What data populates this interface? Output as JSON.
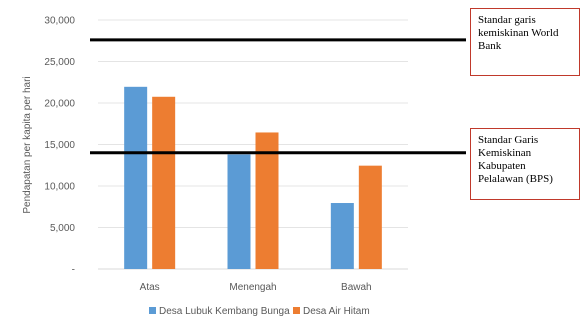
{
  "chart_data": {
    "type": "bar",
    "categories": [
      "Atas",
      "Menengah",
      "Bawah"
    ],
    "series": [
      {
        "name": "Desa Lubuk Kembang Bunga",
        "values": [
          21950,
          13800,
          7950
        ],
        "color": "#5b9bd5"
      },
      {
        "name": "Desa Air Hitam",
        "values": [
          20750,
          16450,
          12450
        ],
        "color": "#ed7d31"
      }
    ],
    "xlabel": "",
    "ylabel": "Pendapatan per kapita per hari",
    "ylim": [
      0,
      30000
    ],
    "yticks": [
      {
        "value": 0,
        "label": "-"
      },
      {
        "value": 5000,
        "label": "5,000"
      },
      {
        "value": 10000,
        "label": "10,000"
      },
      {
        "value": 15000,
        "label": "15,000"
      },
      {
        "value": 20000,
        "label": "20,000"
      },
      {
        "value": 25000,
        "label": "25,000"
      },
      {
        "value": 30000,
        "label": "30,000"
      }
    ],
    "grid": true,
    "legend_position": "bottom",
    "reference_lines": [
      {
        "value": 27600,
        "label": "Standar garis kemiskinan World Bank",
        "color": "#000000"
      },
      {
        "value": 14000,
        "label": "Standar Garis Kemiskinan Kabupaten Pelalawan (BPS)",
        "color": "#000000"
      }
    ]
  },
  "notes": {
    "world_bank": [
      "Standar garis",
      "kemiskinan World",
      "Bank"
    ],
    "bps": [
      "Standar Garis",
      "Kemiskinan",
      "Kabupaten",
      "Pelalawan (BPS)"
    ]
  }
}
